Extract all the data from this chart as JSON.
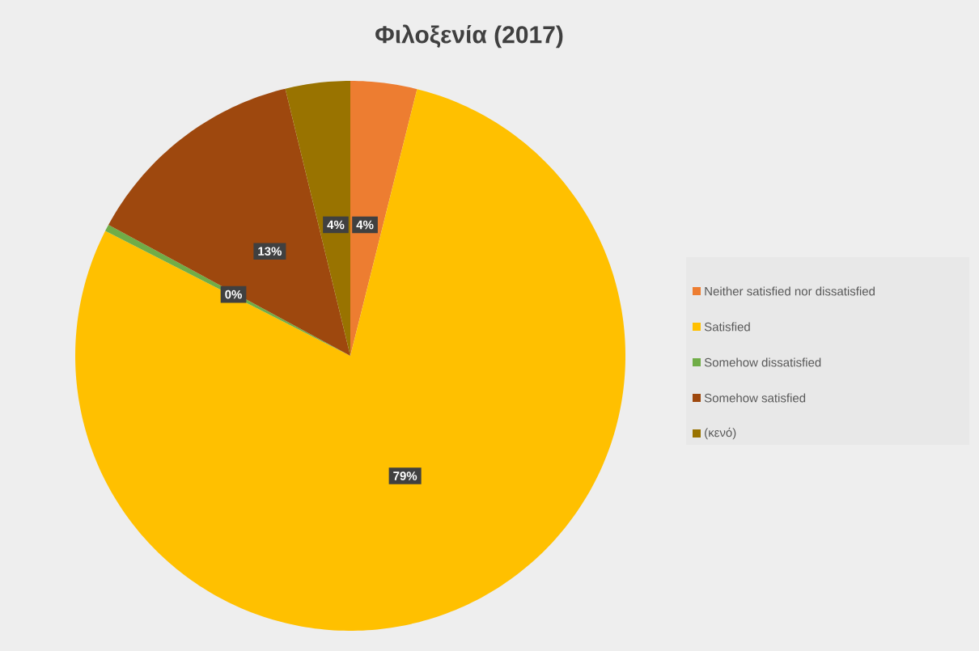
{
  "chart_data": {
    "type": "pie",
    "title": "Φιλοξενία (2017)",
    "categories": [
      "Neither satisfied nor dissatisfied",
      "Satisfied",
      "Somehow dissatisfied",
      "Somehow satisfied",
      "(κενό)"
    ],
    "values": [
      3.9,
      78.6,
      0.4,
      13.3,
      3.8
    ],
    "colors": [
      "#ed7d31",
      "#ffc000",
      "#70ad47",
      "#9e480e",
      "#997300"
    ],
    "value_labels": [
      "4%",
      "79%",
      "0%",
      "13%",
      "4%"
    ],
    "legend": "right"
  }
}
